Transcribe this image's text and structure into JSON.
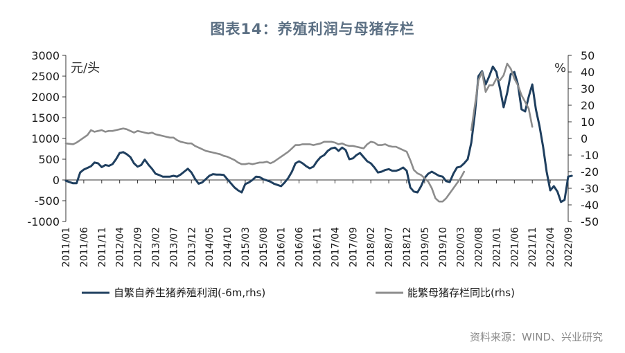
{
  "title": "图表14：养殖利润与母猪存栏",
  "source": "资料来源：WIND、兴业研究",
  "chart_data": {
    "type": "line",
    "title": "图表14：养殖利润与母猪存栏",
    "left_axis_unit": "元/头",
    "right_axis_unit": "%",
    "y_left": {
      "min": -1000,
      "max": 3000,
      "ticks": [
        -1000,
        -500,
        0,
        500,
        1000,
        1500,
        2000,
        2500,
        3000
      ]
    },
    "y_right": {
      "min": -50,
      "max": 50,
      "ticks": [
        -50,
        -40,
        -30,
        -20,
        -10,
        0,
        10,
        20,
        30,
        40,
        50
      ]
    },
    "x_ticks": [
      "2011/01",
      "2011/06",
      "2011/11",
      "2012/04",
      "2012/09",
      "2013/02",
      "2013/07",
      "2013/12",
      "2014/05",
      "2014/10",
      "2015/03",
      "2015/08",
      "2016/01",
      "2016/06",
      "2016/11",
      "2017/04",
      "2017/09",
      "2018/02",
      "2018/07",
      "2018/12",
      "2019/05",
      "2019/10",
      "2020/03",
      "2020/08",
      "2021/01",
      "2021/06",
      "2021/11",
      "2022/04",
      "2022/09"
    ],
    "legend_position": "bottom",
    "grid": false,
    "series": [
      {
        "name": "自繁自养生猪养殖利润(-6m,rhs)",
        "axis": "left",
        "color": "#1f3f5f",
        "points": [
          [
            "2011/01",
            -20
          ],
          [
            "2011/03",
            -80
          ],
          [
            "2011/04",
            -80
          ],
          [
            "2011/05",
            180
          ],
          [
            "2011/06",
            250
          ],
          [
            "2011/07",
            290
          ],
          [
            "2011/08",
            330
          ],
          [
            "2011/09",
            420
          ],
          [
            "2011/10",
            400
          ],
          [
            "2011/11",
            310
          ],
          [
            "2011/12",
            360
          ],
          [
            "2012/01",
            340
          ],
          [
            "2012/02",
            380
          ],
          [
            "2012/03",
            500
          ],
          [
            "2012/04",
            650
          ],
          [
            "2012/05",
            670
          ],
          [
            "2012/06",
            620
          ],
          [
            "2012/07",
            550
          ],
          [
            "2012/08",
            400
          ],
          [
            "2012/09",
            320
          ],
          [
            "2012/10",
            360
          ],
          [
            "2012/11",
            490
          ],
          [
            "2012/12",
            370
          ],
          [
            "2013/01",
            270
          ],
          [
            "2013/02",
            150
          ],
          [
            "2013/03",
            120
          ],
          [
            "2013/04",
            80
          ],
          [
            "2013/05",
            80
          ],
          [
            "2013/06",
            80
          ],
          [
            "2013/07",
            100
          ],
          [
            "2013/08",
            80
          ],
          [
            "2013/09",
            130
          ],
          [
            "2013/10",
            200
          ],
          [
            "2013/11",
            270
          ],
          [
            "2013/12",
            180
          ],
          [
            "2014/01",
            30
          ],
          [
            "2014/02",
            -90
          ],
          [
            "2014/03",
            -60
          ],
          [
            "2014/04",
            20
          ],
          [
            "2014/05",
            100
          ],
          [
            "2014/06",
            140
          ],
          [
            "2014/07",
            130
          ],
          [
            "2014/08",
            130
          ],
          [
            "2014/09",
            120
          ],
          [
            "2014/10",
            20
          ],
          [
            "2014/11",
            -80
          ],
          [
            "2014/12",
            -180
          ],
          [
            "2015/01",
            -250
          ],
          [
            "2015/02",
            -300
          ],
          [
            "2015/03",
            -100
          ],
          [
            "2015/04",
            -60
          ],
          [
            "2015/05",
            0
          ],
          [
            "2015/06",
            80
          ],
          [
            "2015/07",
            70
          ],
          [
            "2015/08",
            20
          ],
          [
            "2015/09",
            -10
          ],
          [
            "2015/10",
            -40
          ],
          [
            "2015/11",
            -90
          ],
          [
            "2015/12",
            -120
          ],
          [
            "2016/01",
            -150
          ],
          [
            "2016/02",
            -60
          ],
          [
            "2016/03",
            50
          ],
          [
            "2016/04",
            200
          ],
          [
            "2016/05",
            400
          ],
          [
            "2016/06",
            450
          ],
          [
            "2016/07",
            400
          ],
          [
            "2016/08",
            330
          ],
          [
            "2016/09",
            280
          ],
          [
            "2016/10",
            320
          ],
          [
            "2016/11",
            450
          ],
          [
            "2016/12",
            550
          ],
          [
            "2017/01",
            600
          ],
          [
            "2017/02",
            700
          ],
          [
            "2017/03",
            760
          ],
          [
            "2017/04",
            780
          ],
          [
            "2017/05",
            700
          ],
          [
            "2017/06",
            780
          ],
          [
            "2017/07",
            720
          ],
          [
            "2017/08",
            500
          ],
          [
            "2017/09",
            520
          ],
          [
            "2017/10",
            600
          ],
          [
            "2017/11",
            650
          ],
          [
            "2017/12",
            550
          ],
          [
            "2018/01",
            450
          ],
          [
            "2018/02",
            400
          ],
          [
            "2018/03",
            300
          ],
          [
            "2018/04",
            180
          ],
          [
            "2018/05",
            200
          ],
          [
            "2018/06",
            240
          ],
          [
            "2018/07",
            260
          ],
          [
            "2018/08",
            220
          ],
          [
            "2018/09",
            220
          ],
          [
            "2018/10",
            250
          ],
          [
            "2018/11",
            300
          ],
          [
            "2018/12",
            220
          ],
          [
            "2019/01",
            -180
          ],
          [
            "2019/02",
            -280
          ],
          [
            "2019/03",
            -300
          ],
          [
            "2019/04",
            -150
          ],
          [
            "2019/05",
            50
          ],
          [
            "2019/06",
            150
          ],
          [
            "2019/07",
            200
          ],
          [
            "2019/08",
            150
          ],
          [
            "2019/09",
            100
          ],
          [
            "2019/10",
            80
          ],
          [
            "2019/11",
            -30
          ],
          [
            "2019/12",
            -50
          ],
          [
            "2020/01",
            150
          ],
          [
            "2020/02",
            300
          ],
          [
            "2020/03",
            320
          ],
          [
            "2020/04",
            400
          ],
          [
            "2020/05",
            500
          ],
          [
            "2020/06",
            900
          ],
          [
            "2020/07",
            1600
          ],
          [
            "2020/08",
            2500
          ],
          [
            "2020/09",
            2620
          ],
          [
            "2020/10",
            2300
          ],
          [
            "2020/11",
            2500
          ],
          [
            "2020/12",
            2730
          ],
          [
            "2021/01",
            2600
          ],
          [
            "2021/02",
            2200
          ],
          [
            "2021/03",
            1750
          ],
          [
            "2021/04",
            2100
          ],
          [
            "2021/05",
            2550
          ],
          [
            "2021/06",
            2600
          ],
          [
            "2021/07",
            2300
          ],
          [
            "2021/08",
            1700
          ],
          [
            "2021/09",
            1650
          ],
          [
            "2021/10",
            2000
          ],
          [
            "2021/11",
            2300
          ],
          [
            "2021/12",
            1700
          ],
          [
            "2022/01",
            1300
          ],
          [
            "2022/02",
            800
          ],
          [
            "2022/03",
            200
          ],
          [
            "2022/04",
            -250
          ],
          [
            "2022/05",
            -150
          ],
          [
            "2022/06",
            -280
          ],
          [
            "2022/07",
            -530
          ],
          [
            "2022/08",
            -480
          ],
          [
            "2022/09",
            80
          ],
          [
            "2022/10",
            100
          ]
        ]
      },
      {
        "name": "能繁母猪存栏同比(rhs)",
        "axis": "right",
        "color": "#8c8c8c",
        "points": [
          [
            "2011/01",
            -3
          ],
          [
            "2011/03",
            -3.5
          ],
          [
            "2011/04",
            -2.5
          ],
          [
            "2011/05",
            -1
          ],
          [
            "2011/06",
            0.5
          ],
          [
            "2011/07",
            2
          ],
          [
            "2011/08",
            5
          ],
          [
            "2011/09",
            4
          ],
          [
            "2011/10",
            4.5
          ],
          [
            "2011/11",
            5
          ],
          [
            "2011/12",
            4
          ],
          [
            "2012/01",
            4.5
          ],
          [
            "2012/02",
            4.5
          ],
          [
            "2012/03",
            5
          ],
          [
            "2012/04",
            5.5
          ],
          [
            "2012/05",
            6
          ],
          [
            "2012/06",
            5.5
          ],
          [
            "2012/07",
            4.5
          ],
          [
            "2012/08",
            3.5
          ],
          [
            "2012/09",
            4.5
          ],
          [
            "2012/10",
            4
          ],
          [
            "2012/11",
            3.5
          ],
          [
            "2012/12",
            3
          ],
          [
            "2013/01",
            3.5
          ],
          [
            "2013/02",
            2.5
          ],
          [
            "2013/03",
            2
          ],
          [
            "2013/04",
            1.5
          ],
          [
            "2013/05",
            1
          ],
          [
            "2013/06",
            0.5
          ],
          [
            "2013/07",
            0.5
          ],
          [
            "2013/08",
            -1
          ],
          [
            "2013/09",
            -2
          ],
          [
            "2013/10",
            -2.5
          ],
          [
            "2013/11",
            -3
          ],
          [
            "2013/12",
            -3
          ],
          [
            "2014/01",
            -4.5
          ],
          [
            "2014/02",
            -5.5
          ],
          [
            "2014/03",
            -6.5
          ],
          [
            "2014/04",
            -7.5
          ],
          [
            "2014/05",
            -8
          ],
          [
            "2014/06",
            -8.5
          ],
          [
            "2014/07",
            -9
          ],
          [
            "2014/08",
            -9.5
          ],
          [
            "2014/09",
            -10.5
          ],
          [
            "2014/10",
            -11
          ],
          [
            "2014/11",
            -12
          ],
          [
            "2014/12",
            -13
          ],
          [
            "2015/01",
            -14.5
          ],
          [
            "2015/02",
            -15.5
          ],
          [
            "2015/03",
            -15.5
          ],
          [
            "2015/04",
            -15
          ],
          [
            "2015/05",
            -15.5
          ],
          [
            "2015/06",
            -15
          ],
          [
            "2015/07",
            -14.5
          ],
          [
            "2015/08",
            -14.5
          ],
          [
            "2015/09",
            -14
          ],
          [
            "2015/10",
            -15
          ],
          [
            "2015/11",
            -14
          ],
          [
            "2015/12",
            -12.5
          ],
          [
            "2016/01",
            -11
          ],
          [
            "2016/02",
            -9.5
          ],
          [
            "2016/03",
            -8
          ],
          [
            "2016/04",
            -6
          ],
          [
            "2016/05",
            -4
          ],
          [
            "2016/06",
            -4
          ],
          [
            "2016/07",
            -3.5
          ],
          [
            "2016/08",
            -3.5
          ],
          [
            "2016/09",
            -3.5
          ],
          [
            "2016/10",
            -4
          ],
          [
            "2016/11",
            -3.5
          ],
          [
            "2016/12",
            -3
          ],
          [
            "2017/01",
            -2
          ],
          [
            "2017/02",
            -2
          ],
          [
            "2017/03",
            -2
          ],
          [
            "2017/04",
            -2.5
          ],
          [
            "2017/05",
            -3.5
          ],
          [
            "2017/06",
            -3
          ],
          [
            "2017/07",
            -4
          ],
          [
            "2017/08",
            -4.5
          ],
          [
            "2017/09",
            -4.5
          ],
          [
            "2017/10",
            -5
          ],
          [
            "2017/11",
            -5.5
          ],
          [
            "2017/12",
            -6
          ],
          [
            "2018/01",
            -3.5
          ],
          [
            "2018/02",
            -2
          ],
          [
            "2018/03",
            -2.5
          ],
          [
            "2018/04",
            -4
          ],
          [
            "2018/05",
            -4
          ],
          [
            "2018/06",
            -3.5
          ],
          [
            "2018/07",
            -4.5
          ],
          [
            "2018/08",
            -5
          ],
          [
            "2018/09",
            -5
          ],
          [
            "2018/10",
            -6
          ],
          [
            "2018/11",
            -7
          ],
          [
            "2018/12",
            -8
          ],
          [
            "2019/01",
            -13
          ],
          [
            "2019/02",
            -19
          ],
          [
            "2019/03",
            -21
          ],
          [
            "2019/04",
            -22
          ],
          [
            "2019/05",
            -24
          ],
          [
            "2019/06",
            -26
          ],
          [
            "2019/07",
            -30
          ],
          [
            "2019/08",
            -36
          ],
          [
            "2019/09",
            -38
          ],
          [
            "2019/10",
            -38
          ],
          [
            "2019/11",
            -36
          ],
          [
            "2019/12",
            -33
          ],
          [
            "2020/01",
            -30
          ],
          [
            "2020/02",
            -27
          ],
          [
            "2020/03",
            -24
          ],
          [
            "2020/04",
            -20
          ]
        ]
      },
      {
        "name": "能繁母猪存栏同比(rhs)",
        "axis": "right",
        "color": "#8c8c8c",
        "segment": 2,
        "points": [
          [
            "2020/06",
            5
          ],
          [
            "2020/07",
            20
          ],
          [
            "2020/08",
            35
          ],
          [
            "2020/09",
            40
          ],
          [
            "2020/10",
            28
          ],
          [
            "2020/11",
            32
          ],
          [
            "2020/12",
            32
          ],
          [
            "2021/01",
            36
          ],
          [
            "2021/02",
            35
          ],
          [
            "2021/03",
            38
          ],
          [
            "2021/04",
            45
          ],
          [
            "2021/05",
            42
          ],
          [
            "2021/06",
            36
          ],
          [
            "2021/07",
            32
          ],
          [
            "2021/08",
            26
          ],
          [
            "2021/09",
            22
          ],
          [
            "2021/10",
            18
          ],
          [
            "2021/11",
            7
          ]
        ]
      }
    ]
  }
}
